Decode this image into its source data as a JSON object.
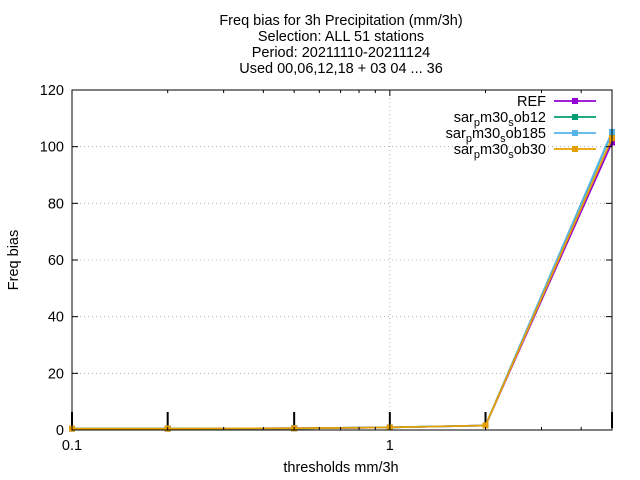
{
  "chart_data": {
    "type": "line",
    "title_lines": [
      "Freq bias  for 3h Precipitation (mm/3h)",
      "Selection: ALL     51 stations",
      "Period: 20211110-20211124",
      "Used 00,06,12,18 + 03 04 ... 36"
    ],
    "xlabel": "thresholds mm/3h",
    "ylabel": "Freq bias",
    "x_scale": "log",
    "xlim": [
      0.1,
      5
    ],
    "ylim": [
      0,
      120
    ],
    "x_ticks": [
      {
        "value": 0.1,
        "label": "0.1"
      },
      {
        "value": 1,
        "label": "1"
      }
    ],
    "y_ticks": [
      0,
      20,
      40,
      60,
      80,
      100,
      120
    ],
    "grid": "dotted, major ticks",
    "legend_position": "top-right",
    "x": [
      0.1,
      0.2,
      0.5,
      1,
      2,
      5
    ],
    "series": [
      {
        "name": "REF",
        "color": "#9400d3",
        "values": [
          0.5,
          0.5,
          0.6,
          0.9,
          1.6,
          101.5
        ]
      },
      {
        "name": "sar_p m30_s ob12",
        "color": "#009e73",
        "values": [
          0.5,
          0.5,
          0.6,
          0.9,
          1.6,
          105.0
        ]
      },
      {
        "name": "sar_p m30_s ob185",
        "color": "#56b4e9",
        "values": [
          0.5,
          0.5,
          0.6,
          0.9,
          1.6,
          105.2
        ]
      },
      {
        "name": "sar_p m30_s ob30",
        "color": "#e69f00",
        "values": [
          0.5,
          0.5,
          0.6,
          0.9,
          1.6,
          103.0
        ]
      }
    ],
    "legend_labels": [
      {
        "parts": [
          {
            "t": "REF",
            "sub": false
          }
        ]
      },
      {
        "parts": [
          {
            "t": "sar",
            "sub": false
          },
          {
            "t": "p",
            "sub": true
          },
          {
            "t": "m30",
            "sub": false
          },
          {
            "t": "s",
            "sub": true
          },
          {
            "t": "ob12",
            "sub": false
          }
        ]
      },
      {
        "parts": [
          {
            "t": "sar",
            "sub": false
          },
          {
            "t": "p",
            "sub": true
          },
          {
            "t": "m30",
            "sub": false
          },
          {
            "t": "s",
            "sub": true
          },
          {
            "t": "ob185",
            "sub": false
          }
        ]
      },
      {
        "parts": [
          {
            "t": "sar",
            "sub": false
          },
          {
            "t": "p",
            "sub": true
          },
          {
            "t": "m30",
            "sub": false
          },
          {
            "t": "s",
            "sub": true
          },
          {
            "t": "ob30",
            "sub": false
          }
        ]
      }
    ],
    "error_bar_x": [
      0.1,
      0.2,
      0.5,
      1,
      2,
      5
    ]
  }
}
